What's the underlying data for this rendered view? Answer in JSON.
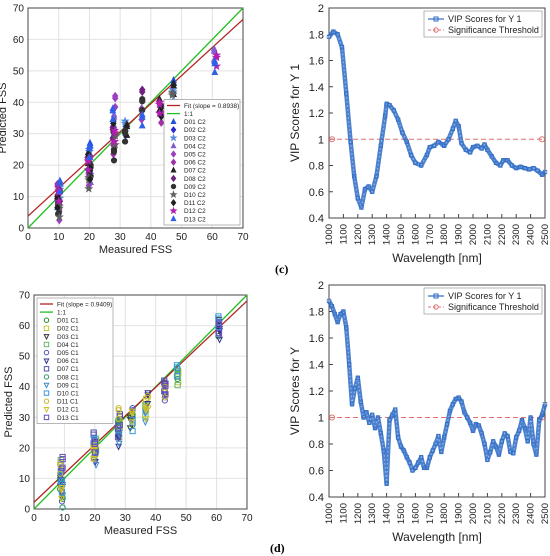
{
  "chart_data": [
    {
      "type": "scatter",
      "xlabel": "Measured FSS",
      "ylabel": "Predicted FSS",
      "xlim": [
        0,
        70
      ],
      "ylim": [
        0,
        70
      ],
      "xticks": [
        0,
        10,
        20,
        30,
        40,
        50,
        60,
        70
      ],
      "yticks": [
        0,
        10,
        20,
        30,
        40,
        50,
        60,
        70
      ],
      "grid": true,
      "legend_position": "bottom-right",
      "fit_line": {
        "name": "Fit (slope = 0.8938)",
        "slope": 0.8938,
        "intercept": 3.8,
        "color": "#b22222"
      },
      "identity_line": {
        "name": "1:1",
        "color": "#22c022"
      },
      "series": [
        {
          "name": "D01 C2",
          "marker": "triangle",
          "color": "#2050e0",
          "x": [
            10,
            20,
            28,
            47
          ],
          "y": [
            10,
            27,
            33,
            47
          ]
        },
        {
          "name": "D02 C2",
          "marker": "diamond",
          "color": "#2b2bd0",
          "x": [
            10,
            20,
            28,
            32
          ],
          "y": [
            8,
            22,
            30,
            33
          ]
        },
        {
          "name": "D03 C2",
          "marker": "star",
          "color": "#5a8de0",
          "x": [
            10,
            20,
            32,
            47
          ],
          "y": [
            13,
            25,
            34,
            44
          ]
        },
        {
          "name": "D04 C2",
          "marker": "triangle",
          "color": "#8060d0",
          "x": [
            10,
            20,
            28,
            61
          ],
          "y": [
            11,
            18,
            36,
            57
          ]
        },
        {
          "name": "D05 C2",
          "marker": "diamond",
          "color": "#9b40c0",
          "x": [
            10,
            20,
            28,
            37
          ],
          "y": [
            6,
            17,
            42,
            38
          ]
        },
        {
          "name": "D06 C2",
          "marker": "diamond",
          "color": "#a030a8",
          "x": [
            10,
            20,
            28,
            43
          ],
          "y": [
            14,
            23,
            27,
            37
          ]
        },
        {
          "name": "D07 C2",
          "marker": "triangle",
          "color": "#222222",
          "x": [
            10,
            20,
            32,
            43,
            47
          ],
          "y": [
            9,
            24,
            33,
            41,
            46
          ]
        },
        {
          "name": "D08 C2",
          "marker": "diamond",
          "color": "#702080",
          "x": [
            10,
            20,
            28,
            37
          ],
          "y": [
            12,
            21,
            32,
            44
          ]
        },
        {
          "name": "D09 C2",
          "marker": "circle",
          "color": "#333333",
          "x": [
            10,
            20,
            28,
            32,
            37
          ],
          "y": [
            8,
            20,
            25,
            31,
            41
          ]
        },
        {
          "name": "D10 C2",
          "marker": "star",
          "color": "#606060",
          "x": [
            10,
            20,
            28,
            47
          ],
          "y": [
            7,
            16,
            30,
            43
          ]
        },
        {
          "name": "D11 C2",
          "marker": "diamond",
          "color": "#202020",
          "x": [
            10,
            20,
            28,
            43
          ],
          "y": [
            10,
            19,
            34,
            39
          ]
        },
        {
          "name": "D12 C2",
          "marker": "star",
          "color": "#b020b0",
          "x": [
            10,
            20,
            28,
            43,
            61
          ],
          "y": [
            12,
            22,
            31,
            40,
            55
          ]
        },
        {
          "name": "D13 C2",
          "marker": "triangle",
          "color": "#3060e8",
          "x": [
            10,
            20,
            28,
            37,
            61
          ],
          "y": [
            15,
            26,
            38,
            36,
            53
          ]
        }
      ]
    },
    {
      "type": "line",
      "xlabel": "Wavelength [nm]",
      "ylabel": "VIP Scores for Y 1",
      "xlim": [
        1000,
        2500
      ],
      "ylim": [
        0.4,
        2
      ],
      "xticks": [
        1000,
        1100,
        1200,
        1300,
        1400,
        1500,
        1600,
        1700,
        1800,
        1900,
        2000,
        2100,
        2200,
        2300,
        2400,
        2500
      ],
      "yticks": [
        0.4,
        0.6,
        0.8,
        1,
        1.2,
        1.4,
        1.6,
        1.8,
        2
      ],
      "legend_position": "top-right",
      "threshold": {
        "name": "Significance Threshold",
        "value": 1
      },
      "series": [
        {
          "name": "VIP Scores for Y 1",
          "color": "#2e6bc6",
          "x": [
            1000,
            1030,
            1060,
            1090,
            1120,
            1150,
            1175,
            1200,
            1225,
            1250,
            1275,
            1300,
            1330,
            1360,
            1390,
            1400,
            1420,
            1450,
            1480,
            1510,
            1540,
            1570,
            1600,
            1640,
            1680,
            1700,
            1730,
            1760,
            1790,
            1800,
            1830,
            1860,
            1880,
            1900,
            1920,
            1950,
            1980,
            2000,
            2030,
            2060,
            2080,
            2100,
            2130,
            2160,
            2190,
            2210,
            2240,
            2270,
            2300,
            2330,
            2360,
            2390,
            2420,
            2450,
            2480,
            2500
          ],
          "y": [
            1.78,
            1.82,
            1.8,
            1.7,
            1.35,
            0.98,
            0.72,
            0.55,
            0.48,
            0.62,
            0.64,
            0.6,
            0.72,
            0.95,
            1.18,
            1.27,
            1.26,
            1.22,
            1.15,
            1.05,
            0.98,
            0.88,
            0.82,
            0.8,
            0.88,
            0.94,
            0.95,
            0.98,
            0.96,
            0.95,
            1.0,
            1.08,
            1.14,
            1.1,
            0.97,
            0.92,
            0.9,
            0.94,
            0.95,
            0.93,
            0.96,
            0.92,
            0.87,
            0.82,
            0.8,
            0.84,
            0.84,
            0.8,
            0.78,
            0.79,
            0.78,
            0.77,
            0.78,
            0.76,
            0.73,
            0.75
          ]
        }
      ]
    },
    {
      "type": "scatter",
      "xlabel": "Measured FSS",
      "ylabel": "Predicted FSS",
      "xlim": [
        0,
        70
      ],
      "ylim": [
        0,
        70
      ],
      "xticks": [
        0,
        10,
        20,
        30,
        40,
        50,
        60,
        70
      ],
      "yticks": [
        0,
        10,
        20,
        30,
        40,
        50,
        60,
        70
      ],
      "grid": true,
      "legend_position": "top-left",
      "fit_line": {
        "name": "Fit (slope = 0.9409)",
        "slope": 0.9409,
        "intercept": 2.2,
        "color": "#b22222"
      },
      "identity_line": {
        "name": "1:1",
        "color": "#22c022"
      },
      "series": [
        {
          "name": "D01 C1",
          "marker": "circle",
          "color": "#2a8a2a",
          "x": [
            9,
            20,
            28,
            32,
            43,
            61
          ],
          "y": [
            10,
            22,
            28,
            31,
            40,
            60
          ]
        },
        {
          "name": "D02 C1",
          "marker": "square",
          "color": "#c8c83c",
          "x": [
            9,
            20,
            28,
            37,
            47
          ],
          "y": [
            13,
            20,
            30,
            36,
            45
          ]
        },
        {
          "name": "D03 C1",
          "marker": "triangle-down",
          "color": "#333333",
          "x": [
            9,
            20,
            32,
            43,
            61
          ],
          "y": [
            8,
            22,
            30,
            41,
            62
          ]
        },
        {
          "name": "D04 C1",
          "marker": "square",
          "color": "#6ab86a",
          "x": [
            9,
            20,
            28,
            37,
            47
          ],
          "y": [
            16,
            23,
            27,
            34,
            44
          ]
        },
        {
          "name": "D05 C1",
          "marker": "circle",
          "color": "#5050c0",
          "x": [
            9,
            20,
            32,
            43,
            61
          ],
          "y": [
            6,
            20,
            33,
            39,
            61
          ]
        },
        {
          "name": "D06 C1",
          "marker": "triangle-down",
          "color": "#303090",
          "x": [
            9,
            20,
            28,
            37,
            61
          ],
          "y": [
            11,
            19,
            24,
            38,
            59
          ]
        },
        {
          "name": "D07 C1",
          "marker": "square",
          "color": "#5050b0",
          "x": [
            9,
            20,
            28,
            43
          ],
          "y": [
            13,
            25,
            31,
            42
          ]
        },
        {
          "name": "D08 C1",
          "marker": "circle",
          "color": "#2c9a6a",
          "x": [
            9,
            20,
            28,
            47
          ],
          "y": [
            4,
            21,
            29,
            46
          ]
        },
        {
          "name": "D09 C1",
          "marker": "triangle-down",
          "color": "#3a8ad0",
          "x": [
            9,
            20,
            28,
            37
          ],
          "y": [
            12,
            18,
            25,
            32
          ]
        },
        {
          "name": "D10 C1",
          "marker": "square",
          "color": "#3a9ae0",
          "x": [
            9,
            20,
            32,
            47,
            61
          ],
          "y": [
            9,
            23,
            29,
            47,
            63
          ]
        },
        {
          "name": "D11 C1",
          "marker": "circle",
          "color": "#c8b832",
          "x": [
            9,
            20,
            28,
            37,
            43
          ],
          "y": [
            15,
            21,
            33,
            37,
            40
          ]
        },
        {
          "name": "D12 C1",
          "marker": "triangle-down",
          "color": "#d0c020",
          "x": [
            9,
            20,
            32,
            37
          ],
          "y": [
            7,
            20,
            32,
            33
          ]
        },
        {
          "name": "D13 C1",
          "marker": "square",
          "color": "#6a4ac0",
          "x": [
            9,
            20,
            28,
            43,
            61
          ],
          "y": [
            17,
            22,
            27,
            41,
            61
          ]
        }
      ]
    },
    {
      "type": "line",
      "xlabel": "Wavelength [nm]",
      "ylabel": "VIP Scores for Y",
      "xlim": [
        1000,
        2500
      ],
      "ylim": [
        0.4,
        2
      ],
      "xticks": [
        1000,
        1100,
        1200,
        1300,
        1400,
        1500,
        1600,
        1700,
        1800,
        1900,
        2000,
        2100,
        2200,
        2300,
        2400,
        2500
      ],
      "yticks": [
        0.4,
        0.6,
        0.8,
        1,
        1.2,
        1.4,
        1.6,
        1.8,
        2
      ],
      "legend_position": "top-right",
      "threshold": {
        "name": "Significance Threshold",
        "value": 1
      },
      "series": [
        {
          "name": "VIP Scores for Y 1",
          "color": "#2e6bc6",
          "x": [
            1000,
            1020,
            1040,
            1060,
            1080,
            1100,
            1120,
            1140,
            1160,
            1180,
            1200,
            1220,
            1240,
            1260,
            1280,
            1300,
            1320,
            1340,
            1360,
            1380,
            1400,
            1420,
            1440,
            1460,
            1480,
            1500,
            1520,
            1540,
            1560,
            1580,
            1600,
            1620,
            1640,
            1660,
            1680,
            1700,
            1720,
            1740,
            1760,
            1780,
            1800,
            1820,
            1840,
            1860,
            1880,
            1900,
            1920,
            1940,
            1960,
            1980,
            2000,
            2020,
            2040,
            2060,
            2080,
            2100,
            2120,
            2140,
            2160,
            2180,
            2200,
            2220,
            2240,
            2260,
            2280,
            2300,
            2320,
            2340,
            2360,
            2380,
            2400,
            2420,
            2440,
            2460,
            2480,
            2500
          ],
          "y": [
            1.88,
            1.84,
            1.78,
            1.72,
            1.78,
            1.8,
            1.68,
            1.4,
            1.1,
            1.22,
            1.3,
            1.12,
            1.0,
            1.04,
            0.96,
            1.02,
            0.92,
            1.0,
            0.88,
            0.75,
            0.5,
            0.98,
            1.02,
            1.06,
            0.85,
            0.78,
            0.75,
            0.7,
            0.66,
            0.6,
            0.62,
            0.66,
            0.7,
            0.62,
            0.62,
            0.7,
            0.75,
            0.8,
            0.86,
            0.74,
            0.85,
            0.95,
            1.05,
            1.1,
            1.14,
            1.15,
            1.12,
            1.04,
            1.0,
            0.96,
            0.9,
            0.95,
            0.94,
            0.88,
            0.8,
            0.68,
            0.74,
            0.82,
            0.78,
            0.72,
            0.82,
            0.88,
            0.86,
            0.74,
            0.73,
            0.85,
            0.9,
            0.98,
            0.92,
            0.82,
            1.0,
            0.8,
            0.72,
            0.98,
            1.02,
            1.1
          ]
        }
      ]
    }
  ],
  "panel_labels": [
    "(c)",
    "(d)"
  ],
  "colors": {
    "threshold": "#e07070",
    "grid": "#e2e2e2",
    "axis": "#222222",
    "vip": "#2e6bc6"
  }
}
